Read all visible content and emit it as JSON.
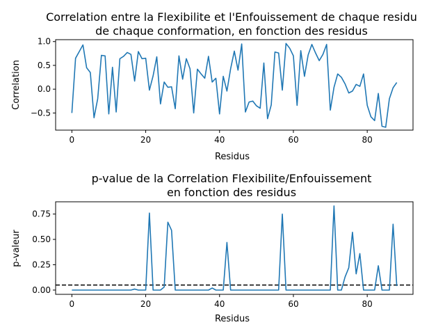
{
  "chart_data": [
    {
      "type": "line",
      "title_line1": "Correlation entre la Flexibilite et l'Enfouissement de chaque residu",
      "title_line2": "de chaque conformation, en fonction des residus",
      "xlabel": "Residus",
      "ylabel": "Correlation",
      "xlim": [
        -4.4,
        92.4
      ],
      "ylim": [
        -0.86,
        1.04
      ],
      "xticks": [
        0,
        20,
        40,
        60,
        80
      ],
      "yticks": [
        -0.5,
        0.0,
        0.5,
        1.0
      ],
      "ytick_labels": [
        "−0.5",
        "0.0",
        "0.5",
        "1.0"
      ],
      "color": "#1f77b4",
      "x": [
        0,
        1,
        2,
        3,
        4,
        5,
        6,
        7,
        8,
        9,
        10,
        11,
        12,
        13,
        14,
        15,
        16,
        17,
        18,
        19,
        20,
        21,
        22,
        23,
        24,
        25,
        26,
        27,
        28,
        29,
        30,
        31,
        32,
        33,
        34,
        35,
        36,
        37,
        38,
        39,
        40,
        41,
        42,
        43,
        44,
        45,
        46,
        47,
        48,
        49,
        50,
        51,
        52,
        53,
        54,
        55,
        56,
        57,
        58,
        59,
        60,
        61,
        62,
        63,
        64,
        65,
        66,
        67,
        68,
        69,
        70,
        71,
        72,
        73,
        74,
        75,
        76,
        77,
        78,
        79,
        80,
        81,
        82,
        83,
        84,
        85,
        86,
        87,
        88
      ],
      "values": [
        -0.5,
        0.65,
        0.79,
        0.93,
        0.45,
        0.35,
        -0.6,
        -0.2,
        0.71,
        0.7,
        -0.52,
        0.46,
        -0.48,
        0.64,
        0.69,
        0.77,
        0.73,
        0.17,
        0.79,
        0.64,
        0.65,
        -0.02,
        0.28,
        0.68,
        -0.31,
        0.15,
        0.04,
        0.05,
        -0.41,
        0.7,
        0.21,
        0.64,
        0.43,
        -0.5,
        0.42,
        0.32,
        0.23,
        0.69,
        0.15,
        0.23,
        -0.52,
        0.27,
        -0.04,
        0.43,
        0.8,
        0.4,
        0.95,
        -0.48,
        -0.27,
        -0.25,
        -0.35,
        -0.4,
        0.55,
        -0.62,
        -0.33,
        0.78,
        0.76,
        -0.02,
        0.96,
        0.86,
        0.7,
        -0.34,
        0.81,
        0.27,
        0.72,
        0.94,
        0.76,
        0.6,
        0.73,
        0.94,
        -0.44,
        0.04,
        0.32,
        0.25,
        0.11,
        -0.08,
        -0.04,
        0.1,
        0.06,
        0.32,
        -0.34,
        -0.58,
        -0.66,
        -0.09,
        -0.78,
        -0.8,
        -0.2,
        0.03,
        0.14
      ]
    },
    {
      "type": "line",
      "title_line1": "p-value de la Correlation Flexibilite/Enfouissement",
      "title_line2": "en fonction des residus",
      "xlabel": "Residus",
      "ylabel": "p-valeur",
      "xlim": [
        -4.4,
        92.4
      ],
      "ylim": [
        -0.042,
        0.871
      ],
      "xticks": [
        0,
        20,
        40,
        60,
        80
      ],
      "yticks": [
        0.0,
        0.25,
        0.5,
        0.75
      ],
      "ytick_labels": [
        "0.00",
        "0.25",
        "0.50",
        "0.75"
      ],
      "color": "#1f77b4",
      "threshold": 0.05,
      "threshold_style": "dashed",
      "x": [
        0,
        1,
        2,
        3,
        4,
        5,
        6,
        7,
        8,
        9,
        10,
        11,
        12,
        13,
        14,
        15,
        16,
        17,
        18,
        19,
        20,
        21,
        22,
        23,
        24,
        25,
        26,
        27,
        28,
        29,
        30,
        31,
        32,
        33,
        34,
        35,
        36,
        37,
        38,
        39,
        40,
        41,
        42,
        43,
        44,
        45,
        46,
        47,
        48,
        49,
        50,
        51,
        52,
        53,
        54,
        55,
        56,
        57,
        58,
        59,
        60,
        61,
        62,
        63,
        64,
        65,
        66,
        67,
        68,
        69,
        70,
        71,
        72,
        73,
        74,
        75,
        76,
        77,
        78,
        79,
        80,
        81,
        82,
        83,
        84,
        85,
        86,
        87,
        88
      ],
      "values": [
        0.0,
        0.0,
        0.0,
        0.0,
        0.0,
        0.0,
        0.0,
        0.0,
        0.0,
        0.0,
        0.0,
        0.0,
        0.0,
        0.0,
        0.0,
        0.0,
        0.0,
        0.01,
        0.0,
        0.0,
        0.0,
        0.76,
        0.0,
        0.0,
        0.0,
        0.03,
        0.67,
        0.59,
        0.0,
        0.0,
        0.0,
        0.0,
        0.0,
        0.0,
        0.0,
        0.0,
        0.0,
        0.0,
        0.02,
        0.0,
        0.0,
        0.0,
        0.47,
        0.0,
        0.0,
        0.0,
        0.0,
        0.0,
        0.0,
        0.0,
        0.0,
        0.0,
        0.0,
        0.0,
        0.0,
        0.0,
        0.0,
        0.75,
        0.0,
        0.0,
        0.0,
        0.0,
        0.0,
        0.0,
        0.0,
        0.0,
        0.0,
        0.0,
        0.0,
        0.0,
        0.0,
        0.83,
        0.0,
        0.0,
        0.13,
        0.22,
        0.57,
        0.16,
        0.36,
        0.0,
        0.0,
        0.0,
        0.0,
        0.24,
        0.0,
        0.0,
        0.0,
        0.65,
        0.04
      ]
    }
  ]
}
